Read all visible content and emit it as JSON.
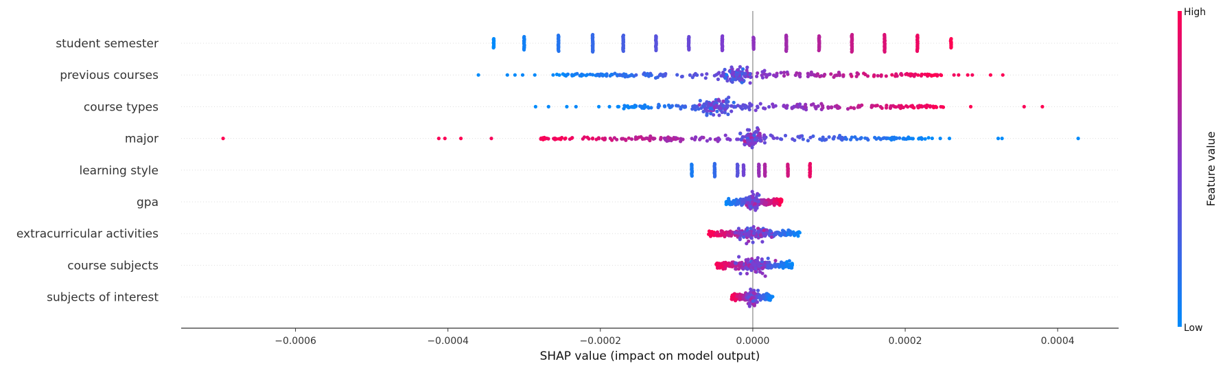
{
  "chart_data": {
    "type": "scatter",
    "subtype": "shap-beeswarm",
    "title": "",
    "xlabel": "SHAP value (impact on model output)",
    "xlim": [
      -0.00075,
      0.00048
    ],
    "x_ticks": [
      -0.0006,
      -0.0004,
      -0.0002,
      0.0,
      0.0002,
      0.0004
    ],
    "x_tick_labels": [
      "−0.0006",
      "−0.0004",
      "−0.0002",
      "0.0000",
      "0.0002",
      "0.0004"
    ],
    "grid": false,
    "row_guides": true,
    "zero_line": true,
    "colorbar": {
      "title": "Feature value",
      "high_label": "High",
      "low_label": "Low",
      "low_color": "#008bfb",
      "high_color": "#ff0052",
      "placement": "right"
    },
    "features": [
      {
        "name": "student semester",
        "points": [
          {
            "x": -0.00034,
            "v": 0.0,
            "n": 14
          },
          {
            "x": -0.0003,
            "v": 0.07,
            "n": 20
          },
          {
            "x": -0.000255,
            "v": 0.14,
            "n": 24
          },
          {
            "x": -0.00021,
            "v": 0.21,
            "n": 26
          },
          {
            "x": -0.00017,
            "v": 0.28,
            "n": 24
          },
          {
            "x": -0.000127,
            "v": 0.35,
            "n": 22
          },
          {
            "x": -8.4e-05,
            "v": 0.42,
            "n": 20
          },
          {
            "x": -4e-05,
            "v": 0.5,
            "n": 22
          },
          {
            "x": 1e-06,
            "v": 0.57,
            "n": 18
          },
          {
            "x": 4.4e-05,
            "v": 0.64,
            "n": 24
          },
          {
            "x": 8.7e-05,
            "v": 0.71,
            "n": 22
          },
          {
            "x": 0.00013,
            "v": 0.78,
            "n": 26
          },
          {
            "x": 0.000173,
            "v": 0.86,
            "n": 26
          },
          {
            "x": 0.000216,
            "v": 0.93,
            "n": 24
          },
          {
            "x": 0.00026,
            "v": 1.0,
            "n": 14
          }
        ]
      },
      {
        "name": "previous courses",
        "outliers": [
          {
            "x": -0.00036,
            "v": 0.0
          },
          {
            "x": -0.000322,
            "v": 0.02
          },
          {
            "x": -0.000312,
            "v": 0.0
          },
          {
            "x": -0.000302,
            "v": 0.03
          },
          {
            "x": -0.000286,
            "v": 0.01
          },
          {
            "x": -0.000262,
            "v": 0.02
          },
          {
            "x": 0.000264,
            "v": 0.95
          },
          {
            "x": 0.00027,
            "v": 0.97
          },
          {
            "x": 0.000282,
            "v": 0.98
          },
          {
            "x": 0.000288,
            "v": 0.96
          },
          {
            "x": 0.000312,
            "v": 1.0
          },
          {
            "x": 0.000328,
            "v": 0.99
          }
        ],
        "bulk_range": [
          -0.00026,
          0.00025
        ],
        "cluster": {
          "x": -2e-05,
          "spread": 1e-05,
          "v": 0.35
        }
      },
      {
        "name": "course types",
        "outliers": [
          {
            "x": -0.000285,
            "v": 0.0
          },
          {
            "x": -0.000268,
            "v": 0.02
          },
          {
            "x": -0.000244,
            "v": 0.0
          },
          {
            "x": -0.000232,
            "v": 0.03
          },
          {
            "x": -0.000202,
            "v": 0.0
          },
          {
            "x": -0.000188,
            "v": 0.02
          },
          {
            "x": -0.000176,
            "v": 0.01
          },
          {
            "x": 0.000286,
            "v": 1.0
          },
          {
            "x": 0.000356,
            "v": 0.98
          },
          {
            "x": 0.00038,
            "v": 1.0
          }
        ],
        "bulk_range": [
          -0.00018,
          0.00025
        ],
        "cluster": {
          "x": -5e-05,
          "spread": 1e-05,
          "v": 0.4
        }
      },
      {
        "name": "major",
        "outliers": [
          {
            "x": -0.000695,
            "v": 1.0
          },
          {
            "x": -0.000412,
            "v": 0.98
          },
          {
            "x": -0.000404,
            "v": 0.99
          },
          {
            "x": -0.000383,
            "v": 1.0
          },
          {
            "x": -0.000343,
            "v": 0.97
          },
          {
            "x": 0.000246,
            "v": 0.02
          },
          {
            "x": 0.000258,
            "v": 0.0
          },
          {
            "x": 0.000322,
            "v": 0.01
          },
          {
            "x": 0.000327,
            "v": 0.0
          },
          {
            "x": 0.000427,
            "v": 0.0
          }
        ],
        "bulk_range": [
          -0.00028,
          0.00024
        ],
        "cluster": {
          "x": 0.0,
          "spread": 7e-06,
          "v": 0.5
        },
        "reversed": true
      },
      {
        "name": "learning style",
        "points": [
          {
            "x": -8e-05,
            "v": 0.1,
            "n": 18
          },
          {
            "x": -5e-05,
            "v": 0.2,
            "n": 20
          },
          {
            "x": -2e-05,
            "v": 0.35,
            "n": 18
          },
          {
            "x": -1.2e-05,
            "v": 0.45,
            "n": 16
          },
          {
            "x": 8e-06,
            "v": 0.6,
            "n": 18
          },
          {
            "x": 1.6e-05,
            "v": 0.68,
            "n": 18
          },
          {
            "x": 4.6e-05,
            "v": 0.82,
            "n": 18
          },
          {
            "x": 7.5e-05,
            "v": 0.92,
            "n": 20
          }
        ]
      },
      {
        "name": "gpa",
        "bulk_range": [
          -3.5e-05,
          3.8e-05
        ],
        "cluster": {
          "x": 0.0,
          "spread": 4e-06,
          "v": 0.5
        }
      },
      {
        "name": "extracurricular activities",
        "bulk_range": [
          -5.8e-05,
          6.2e-05
        ],
        "cluster": {
          "x": 0.0,
          "spread": 1.2e-05,
          "v": 0.5
        },
        "reversed": true
      },
      {
        "name": "course subjects",
        "bulk_range": [
          -4.8e-05,
          5.2e-05
        ],
        "cluster": {
          "x": 0.0,
          "spread": 1e-05,
          "v": 0.5
        },
        "reversed": true
      },
      {
        "name": "subjects of interest",
        "bulk_range": [
          -2.8e-05,
          2.6e-05
        ],
        "cluster": {
          "x": 0.0,
          "spread": 4e-06,
          "v": 0.5
        },
        "reversed": true
      }
    ]
  }
}
